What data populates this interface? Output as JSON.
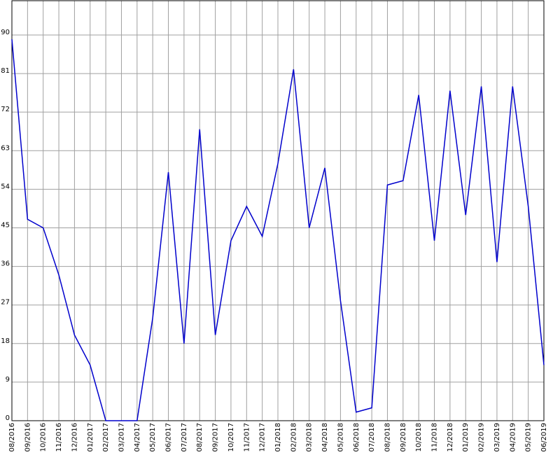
{
  "chart_data": {
    "type": "line",
    "categories": [
      "08/2016",
      "09/2016",
      "10/2016",
      "11/2016",
      "12/2016",
      "01/2017",
      "02/2017",
      "03/2017",
      "04/2017",
      "05/2017",
      "06/2017",
      "07/2017",
      "08/2017",
      "09/2017",
      "10/2017",
      "11/2017",
      "12/2017",
      "01/2018",
      "02/2018",
      "03/2018",
      "04/2018",
      "05/2018",
      "06/2018",
      "07/2018",
      "08/2018",
      "09/2018",
      "10/2018",
      "11/2018",
      "12/2018",
      "01/2019",
      "02/2019",
      "03/2019",
      "04/2019",
      "05/2019",
      "06/2019"
    ],
    "series": [
      {
        "color": "#0000cc",
        "values": [
          89,
          47,
          45,
          34,
          20,
          13,
          0,
          0,
          0,
          24,
          58,
          18,
          68,
          20,
          42,
          50,
          43,
          60,
          82,
          45,
          59,
          28,
          2,
          3,
          55,
          56,
          76,
          42,
          77,
          48,
          78,
          37,
          78,
          50,
          13
        ]
      }
    ],
    "ylim": [
      0,
      98
    ],
    "yticks": [
      0,
      9,
      18,
      27,
      36,
      45,
      54,
      63,
      72,
      81,
      90
    ],
    "grid": true
  }
}
